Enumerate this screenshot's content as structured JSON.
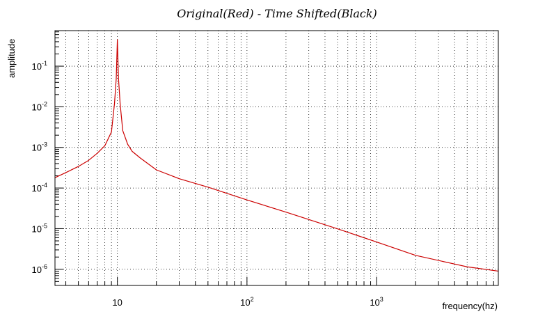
{
  "chart_data": {
    "type": "line",
    "title": "Original(Red) - Time Shifted(Black)",
    "xlabel": "frequency(hz)",
    "ylabel": "amplitude",
    "x_scale": "log",
    "y_scale": "log",
    "xlim": [
      3.3,
      8700
    ],
    "ylim": [
      4e-07,
      0.75
    ],
    "grid": true,
    "x_ticks": [
      {
        "value": 10,
        "base": "10",
        "exp": ""
      },
      {
        "value": 100,
        "base": "10",
        "exp": "2"
      },
      {
        "value": 1000,
        "base": "10",
        "exp": "3"
      }
    ],
    "y_ticks": [
      {
        "value": 1e-06,
        "base": "10",
        "exp": "-6"
      },
      {
        "value": 1e-05,
        "base": "10",
        "exp": "-5"
      },
      {
        "value": 0.0001,
        "base": "10",
        "exp": "-4"
      },
      {
        "value": 0.001,
        "base": "10",
        "exp": "-3"
      },
      {
        "value": 0.01,
        "base": "10",
        "exp": "-2"
      },
      {
        "value": 0.1,
        "base": "10",
        "exp": "-1"
      }
    ],
    "series": [
      {
        "color": "#cc0000",
        "x": [
          3.3,
          4,
          5,
          6,
          7,
          8,
          9,
          9.5,
          9.8,
          10,
          10.2,
          10.5,
          11,
          12,
          13,
          15,
          20,
          30,
          50,
          100,
          200,
          500,
          1000,
          2000,
          5000,
          8700
        ],
        "y": [
          0.00018,
          0.00024,
          0.00034,
          0.00048,
          0.00072,
          0.0011,
          0.0024,
          0.012,
          0.05,
          0.45,
          0.05,
          0.012,
          0.0026,
          0.0012,
          0.0008,
          0.00055,
          0.00028,
          0.00017,
          0.000105,
          5.1e-05,
          2.55e-05,
          9.9e-06,
          4.7e-06,
          2.2e-06,
          1.15e-06,
          9e-07
        ]
      }
    ]
  }
}
